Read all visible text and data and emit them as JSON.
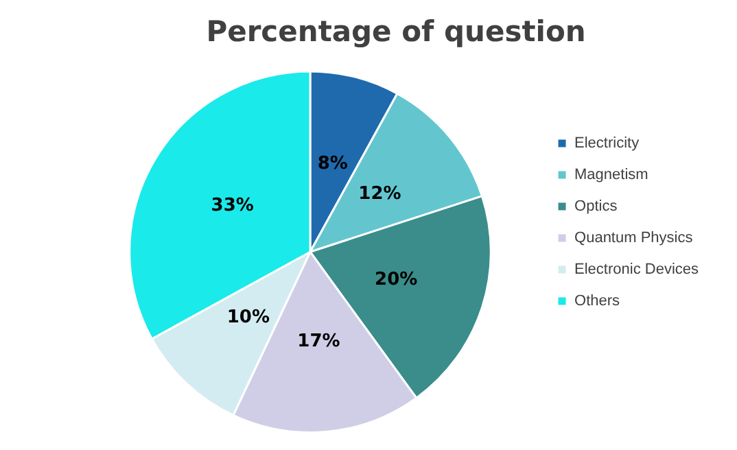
{
  "chart_data": {
    "type": "pie",
    "title": "Percentage of question",
    "categories": [
      "Electricity",
      "Magnetism",
      "Optics",
      "Quantum Physics",
      "Electronic Devices",
      "Others"
    ],
    "values": [
      8,
      12,
      20,
      17,
      10,
      33
    ],
    "value_labels": [
      "8%",
      "12%",
      "20%",
      "17%",
      "10%",
      "33%"
    ],
    "colors": [
      "#1f6aad",
      "#63c6cf",
      "#3a8d8a",
      "#d0cee6",
      "#d3ecf1",
      "#1aeaea"
    ],
    "legend": "right"
  }
}
